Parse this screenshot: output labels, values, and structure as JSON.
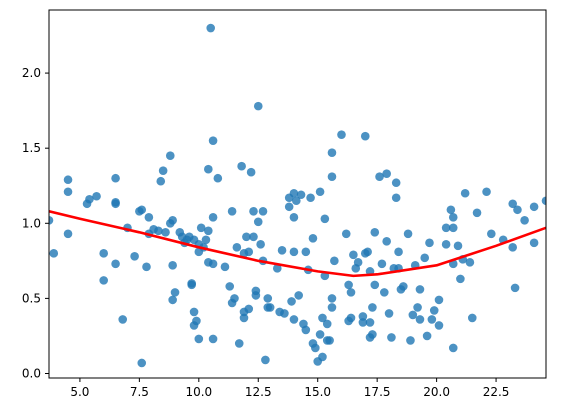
{
  "chart_data": {
    "type": "scatter",
    "title": "",
    "xlabel": "",
    "ylabel": "",
    "xlim": [
      3.7,
      24.6
    ],
    "ylim": [
      -0.03,
      2.42
    ],
    "grid": false,
    "legend": "none",
    "x_ticks": [
      5.0,
      7.5,
      10.0,
      12.5,
      15.0,
      17.5,
      20.0,
      22.5
    ],
    "x_tick_labels": [
      "5.0",
      "7.5",
      "10.0",
      "12.5",
      "15.0",
      "17.5",
      "20.0",
      "22.5"
    ],
    "y_ticks": [
      0.0,
      0.5,
      1.0,
      1.5,
      2.0
    ],
    "y_tick_labels": [
      "0.0",
      "0.5",
      "1.0",
      "1.5",
      "2.0"
    ],
    "point_color": "#1f77b4",
    "line_color": "#ff0000",
    "points": [
      [
        3.7,
        1.02
      ],
      [
        3.9,
        0.8
      ],
      [
        4.5,
        1.29
      ],
      [
        4.5,
        1.21
      ],
      [
        4.5,
        0.93
      ],
      [
        5.3,
        1.13
      ],
      [
        5.4,
        1.16
      ],
      [
        5.7,
        1.18
      ],
      [
        6.0,
        0.62
      ],
      [
        6.0,
        0.8
      ],
      [
        6.5,
        1.3
      ],
      [
        6.5,
        1.14
      ],
      [
        6.5,
        1.13
      ],
      [
        6.5,
        0.73
      ],
      [
        6.8,
        0.36
      ],
      [
        7.0,
        0.97
      ],
      [
        7.3,
        0.78
      ],
      [
        7.5,
        1.08
      ],
      [
        7.6,
        1.09
      ],
      [
        7.6,
        0.07
      ],
      [
        7.8,
        0.71
      ],
      [
        7.9,
        1.04
      ],
      [
        7.9,
        0.93
      ],
      [
        8.1,
        0.96
      ],
      [
        8.3,
        0.95
      ],
      [
        8.4,
        1.28
      ],
      [
        8.5,
        1.35
      ],
      [
        8.6,
        0.94
      ],
      [
        8.8,
        1.0
      ],
      [
        8.8,
        1.45
      ],
      [
        8.9,
        1.02
      ],
      [
        8.9,
        0.72
      ],
      [
        9.0,
        0.54
      ],
      [
        8.9,
        0.49
      ],
      [
        9.2,
        0.94
      ],
      [
        9.3,
        0.91
      ],
      [
        9.4,
        0.87
      ],
      [
        9.5,
        0.89
      ],
      [
        9.6,
        0.91
      ],
      [
        9.7,
        0.59
      ],
      [
        9.7,
        0.6
      ],
      [
        9.8,
        0.89
      ],
      [
        9.8,
        0.41
      ],
      [
        9.8,
        0.32
      ],
      [
        9.9,
        0.35
      ],
      [
        10.0,
        0.86
      ],
      [
        10.0,
        0.81
      ],
      [
        10.1,
        0.97
      ],
      [
        10.0,
        0.23
      ],
      [
        10.2,
        0.84
      ],
      [
        10.3,
        0.89
      ],
      [
        10.4,
        0.95
      ],
      [
        10.4,
        1.36
      ],
      [
        10.4,
        0.74
      ],
      [
        10.5,
        2.3
      ],
      [
        10.6,
        1.55
      ],
      [
        10.6,
        1.04
      ],
      [
        10.6,
        0.73
      ],
      [
        10.6,
        0.23
      ],
      [
        10.8,
        1.3
      ],
      [
        11.1,
        0.71
      ],
      [
        11.3,
        0.58
      ],
      [
        11.4,
        1.08
      ],
      [
        11.4,
        0.47
      ],
      [
        11.5,
        0.5
      ],
      [
        11.6,
        0.84
      ],
      [
        11.7,
        0.2
      ],
      [
        11.8,
        1.38
      ],
      [
        11.9,
        0.8
      ],
      [
        11.9,
        0.41
      ],
      [
        11.9,
        0.37
      ],
      [
        12.0,
        0.91
      ],
      [
        12.1,
        0.81
      ],
      [
        12.1,
        0.43
      ],
      [
        12.2,
        1.34
      ],
      [
        12.3,
        0.91
      ],
      [
        12.3,
        1.08
      ],
      [
        12.4,
        0.55
      ],
      [
        12.4,
        0.52
      ],
      [
        12.5,
        1.78
      ],
      [
        12.5,
        1.01
      ],
      [
        12.6,
        0.86
      ],
      [
        12.7,
        1.08
      ],
      [
        12.7,
        0.75
      ],
      [
        12.8,
        0.09
      ],
      [
        12.9,
        0.5
      ],
      [
        12.9,
        0.44
      ],
      [
        13.0,
        0.44
      ],
      [
        13.3,
        0.7
      ],
      [
        13.4,
        0.41
      ],
      [
        13.5,
        0.82
      ],
      [
        13.6,
        0.4
      ],
      [
        13.8,
        1.17
      ],
      [
        13.8,
        1.11
      ],
      [
        13.9,
        0.48
      ],
      [
        14.0,
        1.04
      ],
      [
        14.0,
        1.2
      ],
      [
        14.0,
        0.36
      ],
      [
        14.0,
        0.81
      ],
      [
        14.1,
        1.15
      ],
      [
        14.2,
        0.52
      ],
      [
        14.3,
        1.19
      ],
      [
        14.4,
        0.33
      ],
      [
        14.5,
        0.29
      ],
      [
        14.5,
        0.81
      ],
      [
        14.6,
        0.69
      ],
      [
        14.7,
        1.17
      ],
      [
        14.8,
        0.9
      ],
      [
        14.8,
        0.2
      ],
      [
        14.9,
        0.17
      ],
      [
        15.0,
        0.08
      ],
      [
        15.1,
        1.21
      ],
      [
        15.1,
        0.26
      ],
      [
        15.2,
        0.37
      ],
      [
        15.2,
        0.11
      ],
      [
        15.3,
        1.03
      ],
      [
        15.3,
        0.65
      ],
      [
        15.4,
        0.33
      ],
      [
        15.4,
        0.22
      ],
      [
        15.5,
        0.22
      ],
      [
        15.6,
        1.47
      ],
      [
        15.6,
        1.31
      ],
      [
        15.6,
        0.5
      ],
      [
        15.6,
        0.44
      ],
      [
        15.7,
        0.75
      ],
      [
        16.0,
        1.59
      ],
      [
        16.2,
        0.93
      ],
      [
        16.3,
        0.59
      ],
      [
        16.4,
        0.54
      ],
      [
        16.4,
        0.37
      ],
      [
        16.3,
        0.35
      ],
      [
        16.5,
        0.79
      ],
      [
        16.6,
        0.7
      ],
      [
        16.7,
        0.74
      ],
      [
        16.9,
        0.38
      ],
      [
        16.9,
        0.34
      ],
      [
        17.0,
        1.58
      ],
      [
        17.0,
        0.8
      ],
      [
        17.1,
        0.81
      ],
      [
        17.2,
        0.68
      ],
      [
        17.2,
        0.34
      ],
      [
        17.2,
        0.24
      ],
      [
        17.3,
        0.26
      ],
      [
        17.3,
        0.44
      ],
      [
        17.4,
        0.94
      ],
      [
        17.4,
        0.59
      ],
      [
        17.6,
        1.31
      ],
      [
        17.7,
        0.73
      ],
      [
        17.8,
        0.54
      ],
      [
        17.9,
        1.33
      ],
      [
        17.9,
        0.88
      ],
      [
        18.0,
        0.4
      ],
      [
        18.1,
        0.24
      ],
      [
        18.2,
        0.7
      ],
      [
        18.3,
        1.27
      ],
      [
        18.3,
        1.17
      ],
      [
        18.4,
        0.81
      ],
      [
        18.4,
        0.7
      ],
      [
        18.5,
        0.56
      ],
      [
        18.6,
        0.58
      ],
      [
        18.8,
        0.93
      ],
      [
        18.9,
        0.22
      ],
      [
        19.0,
        0.39
      ],
      [
        19.1,
        0.72
      ],
      [
        19.2,
        0.44
      ],
      [
        19.3,
        0.56
      ],
      [
        19.3,
        0.36
      ],
      [
        19.5,
        0.77
      ],
      [
        19.6,
        0.25
      ],
      [
        19.7,
        0.87
      ],
      [
        19.8,
        0.36
      ],
      [
        19.9,
        0.42
      ],
      [
        20.1,
        0.49
      ],
      [
        20.1,
        0.32
      ],
      [
        20.4,
        0.97
      ],
      [
        20.4,
        0.86
      ],
      [
        20.6,
        1.09
      ],
      [
        20.7,
        1.04
      ],
      [
        20.7,
        0.97
      ],
      [
        20.7,
        0.73
      ],
      [
        20.7,
        0.17
      ],
      [
        20.9,
        0.85
      ],
      [
        21.0,
        0.63
      ],
      [
        21.1,
        0.76
      ],
      [
        21.2,
        1.2
      ],
      [
        21.4,
        0.74
      ],
      [
        21.5,
        0.37
      ],
      [
        21.7,
        1.07
      ],
      [
        22.1,
        1.21
      ],
      [
        22.3,
        0.93
      ],
      [
        22.8,
        0.89
      ],
      [
        23.2,
        1.13
      ],
      [
        23.3,
        0.57
      ],
      [
        23.2,
        0.84
      ],
      [
        23.4,
        1.09
      ],
      [
        23.7,
        1.02
      ],
      [
        24.1,
        1.11
      ],
      [
        24.1,
        0.87
      ],
      [
        24.6,
        1.15
      ]
    ],
    "trend_line": {
      "x": [
        3.7,
        5.0,
        7.5,
        10.0,
        12.5,
        15.0,
        16.5,
        17.5,
        20.0,
        22.5,
        24.6
      ],
      "y": [
        1.08,
        1.03,
        0.94,
        0.84,
        0.75,
        0.68,
        0.65,
        0.66,
        0.72,
        0.85,
        0.97
      ]
    }
  }
}
